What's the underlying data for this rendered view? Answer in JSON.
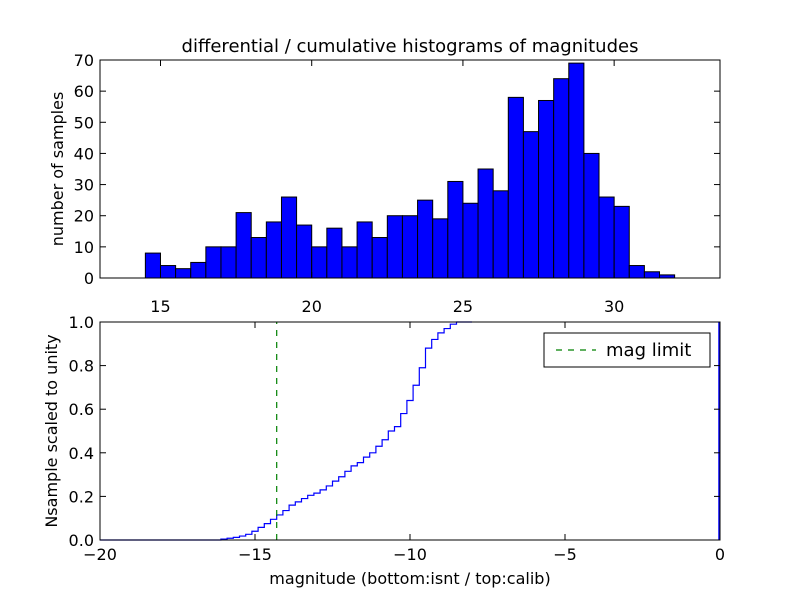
{
  "chart_data": [
    {
      "type": "bar",
      "title": "differential / cumulative histograms of magnitudes",
      "xlabel": "",
      "ylabel": "number of samples",
      "xlim": [
        13,
        33.5
      ],
      "ylim": [
        0,
        70
      ],
      "xticks": [
        "15",
        "20",
        "25",
        "30"
      ],
      "yticks": [
        "0",
        "10",
        "20",
        "30",
        "40",
        "50",
        "60",
        "70"
      ],
      "bar_color": "#0000ff",
      "bin_width": 0.5,
      "bin_start": 14.5,
      "values": [
        8,
        4,
        3,
        5,
        10,
        10,
        21,
        13,
        18,
        26,
        17,
        10,
        16,
        10,
        18,
        13,
        20,
        20,
        25,
        19,
        31,
        24,
        35,
        28,
        58,
        47,
        57,
        64,
        69,
        40,
        26,
        23,
        4,
        2,
        1
      ]
    },
    {
      "type": "line",
      "title": "",
      "xlabel": "magnitude (bottom:isnt / top:calib)",
      "ylabel": "Nsample scaled to unity",
      "xlim": [
        -20,
        0
      ],
      "ylim": [
        0,
        1
      ],
      "xticks": [
        "−20",
        "−15",
        "−10",
        "−5",
        "0"
      ],
      "yticks": [
        "0.0",
        "0.2",
        "0.4",
        "0.6",
        "0.8",
        "1.0"
      ],
      "line_color": "#0000ff",
      "series": [
        {
          "values": [
            [
              -16.3,
              0.0
            ],
            [
              -16.1,
              0.004
            ],
            [
              -15.9,
              0.008
            ],
            [
              -15.7,
              0.012
            ],
            [
              -15.5,
              0.018
            ],
            [
              -15.3,
              0.026
            ],
            [
              -15.1,
              0.04
            ],
            [
              -14.9,
              0.058
            ],
            [
              -14.7,
              0.075
            ],
            [
              -14.5,
              0.095
            ],
            [
              -14.3,
              0.115
            ],
            [
              -14.1,
              0.135
            ],
            [
              -13.9,
              0.16
            ],
            [
              -13.7,
              0.175
            ],
            [
              -13.5,
              0.19
            ],
            [
              -13.3,
              0.205
            ],
            [
              -13.1,
              0.215
            ],
            [
              -12.9,
              0.23
            ],
            [
              -12.7,
              0.248
            ],
            [
              -12.5,
              0.27
            ],
            [
              -12.3,
              0.29
            ],
            [
              -12.1,
              0.315
            ],
            [
              -11.9,
              0.34
            ],
            [
              -11.7,
              0.355
            ],
            [
              -11.5,
              0.38
            ],
            [
              -11.3,
              0.4
            ],
            [
              -11.1,
              0.43
            ],
            [
              -10.9,
              0.46
            ],
            [
              -10.7,
              0.5
            ],
            [
              -10.5,
              0.52
            ],
            [
              -10.3,
              0.58
            ],
            [
              -10.1,
              0.64
            ],
            [
              -9.9,
              0.71
            ],
            [
              -9.7,
              0.79
            ],
            [
              -9.5,
              0.88
            ],
            [
              -9.3,
              0.92
            ],
            [
              -9.1,
              0.95
            ],
            [
              -8.9,
              0.97
            ],
            [
              -8.7,
              0.99
            ],
            [
              -8.5,
              1.0
            ],
            [
              -8.0,
              1.0
            ]
          ]
        },
        {
          "name": "mag limit",
          "style": "dashed",
          "color": "#008000",
          "x": -14.3
        }
      ],
      "legend": {
        "position": "top-right",
        "entries": [
          "mag limit"
        ]
      },
      "annotations": [
        {
          "note": "vertical tick at right edge",
          "x": 0,
          "ymin": 0,
          "ymax": 1
        }
      ]
    }
  ]
}
